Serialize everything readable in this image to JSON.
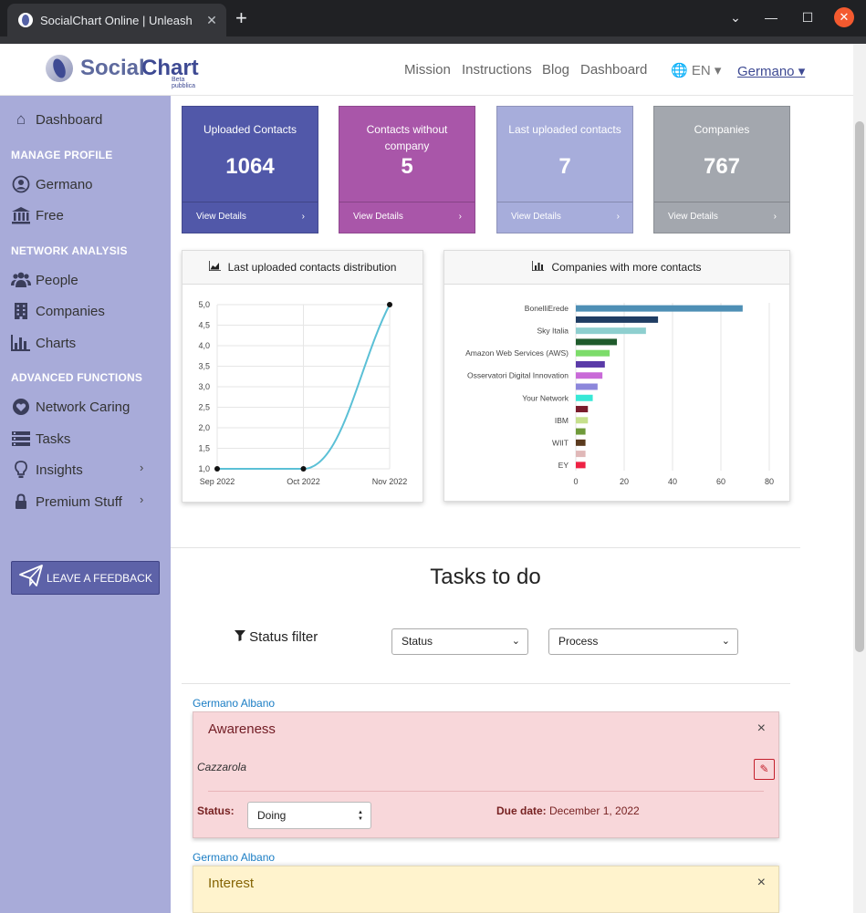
{
  "browser": {
    "tab_title": "SocialChart Online | Unleash",
    "tab_close": "✕",
    "new_tab": "+",
    "minimize": "—",
    "maximize": "☐",
    "close": "✕",
    "dropdown": "⌄"
  },
  "header": {
    "logo_part1": "Social",
    "logo_part2": "Chart",
    "logo_beta": "Beta pubblica",
    "nav": [
      "Mission",
      "Instructions",
      "Blog",
      "Dashboard"
    ],
    "lang": "🌐 EN ▾",
    "user": "Germano ▾"
  },
  "sidebar": {
    "dashboard": "Dashboard",
    "section_profile": "MANAGE PROFILE",
    "profile_name": "Germano",
    "plan": "Free",
    "section_network": "NETWORK ANALYSIS",
    "people": "People",
    "companies": "Companies",
    "charts": "Charts",
    "section_advanced": "ADVANCED FUNCTIONS",
    "network_caring": "Network Caring",
    "tasks": "Tasks",
    "insights": "Insights",
    "premium": "Premium Stuff",
    "feedback": "LEAVE A FEEDBACK",
    "chevron": "›"
  },
  "cards": [
    {
      "title": "Uploaded Contacts",
      "value": "1064",
      "footer": "View Details",
      "color": "#5158a9"
    },
    {
      "title": "Contacts without company",
      "value": "5",
      "footer": "View Details",
      "color": "#a956a9"
    },
    {
      "title": "Last uploaded contacts",
      "value": "7",
      "footer": "View Details",
      "color": "#a7addb"
    },
    {
      "title": "Companies",
      "value": "767",
      "footer": "View Details",
      "color": "#a3a7ae"
    }
  ],
  "card_arrow": "›",
  "charts": {
    "line_title": "Last uploaded contacts distribution",
    "bar_title": "Companies with more contacts"
  },
  "chart_data": [
    {
      "type": "line",
      "title": "Last uploaded contacts distribution",
      "x": [
        "Sep 2022",
        "Oct 2022",
        "Nov 2022"
      ],
      "values": [
        1,
        1,
        5
      ],
      "ylim": [
        1,
        5
      ],
      "yticks": [
        "1,0",
        "1,5",
        "2,0",
        "2,5",
        "3,0",
        "3,5",
        "4,0",
        "4,5",
        "5,0"
      ],
      "line_color": "#5bc0d6",
      "grid": true
    },
    {
      "type": "bar",
      "orientation": "horizontal",
      "title": "Companies with more contacts",
      "categories": [
        "BonelliErede",
        "",
        "Sky Italia",
        "",
        "Amazon Web Services (AWS)",
        "",
        "Osservatori Digital Innovation",
        "",
        "Your Network",
        "",
        "IBM",
        "",
        "WIIT",
        "",
        "EY"
      ],
      "values": [
        69,
        34,
        29,
        17,
        14,
        12,
        11,
        9,
        7,
        5,
        5,
        4,
        4,
        4,
        4
      ],
      "colors": [
        "#4e8fb5",
        "#1f3d63",
        "#8ecfcf",
        "#1f5b2c",
        "#7cdc6a",
        "#5a3aa8",
        "#c96ad8",
        "#8c87db",
        "#38e8d6",
        "#7a1c2c",
        "#c6e08c",
        "#6f9a3a",
        "#5b3b1f",
        "#e0b8b8",
        "#ee2244"
      ],
      "xlim": [
        0,
        80
      ],
      "xticks": [
        "0",
        "20",
        "40",
        "60",
        "80"
      ],
      "grid": true
    }
  ],
  "tasks": {
    "title": "Tasks to do",
    "filter_label": "Status filter",
    "status_select": "Status",
    "process_select": "Process",
    "items": [
      {
        "owner": "Germano Albano",
        "title": "Awareness",
        "description": "Cazzarola",
        "status_label": "Status:",
        "status": "Doing",
        "due_label": "Due date:",
        "due": "December 1, 2022",
        "bg": "#f8d7da",
        "title_color": "#721c24"
      },
      {
        "owner": "Germano Albano",
        "title": "Interest",
        "bg": "#fff3cd",
        "title_color": "#856404"
      }
    ],
    "close": "×"
  }
}
